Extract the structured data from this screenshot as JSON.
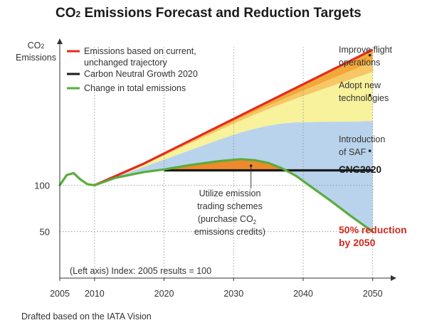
{
  "title": {
    "main": "CO",
    "sub": "2",
    "rest": " Emissions Forecast and Reduction Targets"
  },
  "y_axis_label": {
    "line1": "CO",
    "line1_sub": "2",
    "line2": "Emissions"
  },
  "source_note": "Drafted based on the IATA Vision",
  "index_note": "(Left axis) Index: 2005 results = 100",
  "colors": {
    "red": "#e32a1d",
    "black": "#1a1a1a",
    "green": "#5aac3c",
    "orange_dark": "#f2a93a",
    "orange_light": "#f7c765",
    "yellow": "#f7f29b",
    "blue": "#b9d3ec",
    "ets_orange": "#ef8a2a",
    "reduction_text": "#d12a1f",
    "grid": "#888888"
  },
  "legend": [
    {
      "label": "Emissions based on current,",
      "label2": "unchanged trajectory",
      "color": "#e32a1d"
    },
    {
      "label": "Carbon Neutral Growth 2020",
      "color": "#1a1a1a"
    },
    {
      "label": "Change in total emissions",
      "color": "#5aac3c"
    }
  ],
  "annotations": {
    "improve_flight": [
      "Improve flight",
      "operations"
    ],
    "new_tech": [
      "Adopt new",
      "technologies"
    ],
    "saf": [
      "Introduction",
      "of SAF"
    ],
    "cng2020": "CNG2020",
    "reduction": [
      "50% reduction",
      "by 2050"
    ],
    "ets": [
      "Utilize emission",
      "trading schemes",
      "(purchase CO",
      "emissions credits)"
    ],
    "ets_sub": "2"
  },
  "chart_data": {
    "type": "area",
    "title": "CO2 Emissions Forecast and Reduction Targets",
    "xlabel": "",
    "ylabel": "CO2 Emissions",
    "x_ticks": [
      2005,
      2010,
      2020,
      2030,
      2040,
      2050
    ],
    "y_ticks": [
      100,
      50
    ],
    "xlim": [
      2005,
      2053
    ],
    "ylim": [
      0,
      255
    ],
    "grid": "vertical dotted lines at 2010, 2020, 2030, 2040, 2050",
    "legend_position": "top-left",
    "series": [
      {
        "name": "Emissions based on current, unchanged trajectory",
        "color": "#e32a1d",
        "x": [
          2010,
          2017,
          2050
        ],
        "y": [
          100,
          123,
          246
        ]
      },
      {
        "name": "Carbon Neutral Growth 2020",
        "color": "#1a1a1a",
        "x": [
          2020,
          2050
        ],
        "y": [
          116,
          116
        ]
      },
      {
        "name": "Change in total emissions",
        "color": "#5aac3c",
        "x": [
          2005,
          2006,
          2007,
          2008,
          2009,
          2010,
          2013,
          2017,
          2020,
          2024,
          2028,
          2031,
          2033,
          2035,
          2037,
          2039,
          2041,
          2044,
          2047,
          2050
        ],
        "y": [
          100,
          111,
          113,
          106,
          101,
          100,
          108,
          114,
          117,
          122,
          126,
          128,
          127,
          124,
          118,
          110,
          99,
          83,
          66,
          50
        ]
      }
    ],
    "bands": [
      {
        "name": "Improve flight operations",
        "color": "#f2a93a",
        "x": [
          2050
        ],
        "upper": [
          246
        ],
        "lower": [
          233
        ]
      },
      {
        "name": "Adopt new technologies",
        "color": "#f7c765",
        "x": [
          2050
        ],
        "upper": [
          233
        ],
        "lower": [
          222
        ]
      },
      {
        "name": "Adopt new technologies",
        "color": "#f7f29b",
        "x": [
          2050
        ],
        "upper": [
          222
        ],
        "lower": [
          169
        ]
      },
      {
        "name": "Introduction of SAF",
        "color": "#b9d3ec",
        "x": [
          2050
        ],
        "upper": [
          169
        ],
        "lower": [
          50
        ]
      },
      {
        "name": "Utilize emission trading schemes",
        "color": "#ef8a2a",
        "x": [
          2020,
          2037
        ],
        "upper": "green",
        "lower": [
          116
        ]
      }
    ]
  }
}
